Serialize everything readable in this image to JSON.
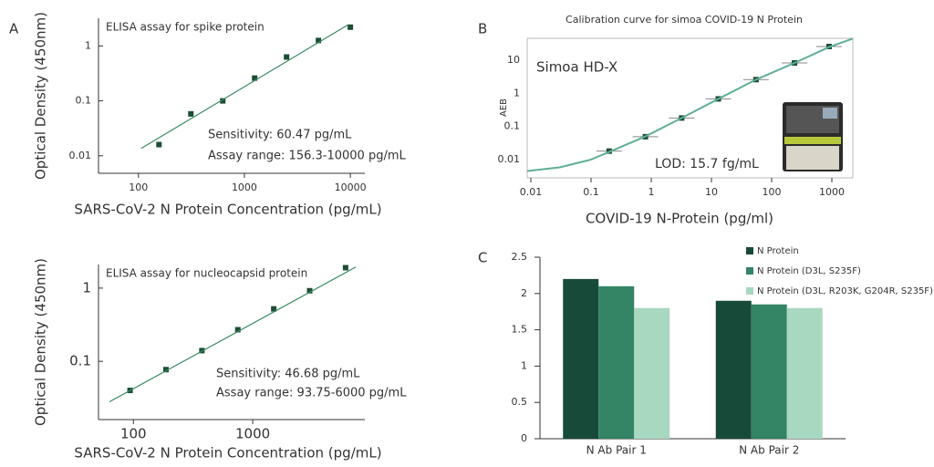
{
  "panel_labels": [
    "A",
    "B",
    "C"
  ],
  "chart_data": [
    {
      "type": "scatter",
      "title": "ELISA assay for spike protein",
      "annotations": [
        "Sensitivity: 60.47 pg/mL",
        "Assay range: 156.3-10000 pg/mL"
      ],
      "x_label": "SARS-CoV-2 N Protein Concentration (pg/mL)",
      "y_label": "Optical Density (450nm)",
      "log_x": true,
      "log_y": true,
      "xlim": [
        42,
        13700
      ],
      "ylim": [
        0.0048,
        3.2
      ],
      "xticks": [
        100,
        1000,
        10000
      ],
      "yticks": [
        0.01,
        0.1,
        1
      ],
      "series": [
        {
          "style": "markers",
          "color": "#1e4d33",
          "x": [
            156.3,
            312.5,
            625,
            1250,
            2500,
            5000,
            10000
          ],
          "values": [
            0.016,
            0.058,
            0.1,
            0.26,
            0.63,
            1.26,
            2.2
          ]
        },
        {
          "style": "line",
          "color": "#3a8a66",
          "x": [
            106,
            9400
          ],
          "values": [
            0.0136,
            2.4
          ]
        }
      ]
    },
    {
      "type": "scatter",
      "title": "ELISA assay for nucleocapsid protein",
      "annotations": [
        "Sensitivity: 46.68 pg/mL",
        "Assay range: 93.75-6000 pg/mL"
      ],
      "x_label": "SARS-CoV-2 N Protein Concentration (pg/mL)",
      "y_label": "Optical Density (450nm)",
      "log_x": true,
      "log_y": true,
      "xlim": [
        51,
        8700
      ],
      "ylim": [
        0.016,
        2.1
      ],
      "xticks": [
        100,
        1000
      ],
      "yticks": [
        0.1,
        1
      ],
      "series": [
        {
          "style": "markers",
          "color": "#1e4d33",
          "x": [
            93.75,
            187.5,
            375,
            750,
            1500,
            3000,
            6000
          ],
          "values": [
            0.04,
            0.077,
            0.14,
            0.27,
            0.52,
            0.92,
            1.9
          ]
        },
        {
          "style": "line",
          "color": "#3a8a66",
          "x": [
            63,
            7300
          ],
          "values": [
            0.028,
            1.94
          ]
        }
      ]
    },
    {
      "type": "scatter",
      "title": "Calibration curve for simoa COVID-19 N Protein",
      "annotations": [
        "Simoa HD-X",
        "LOD: 15.7 fg/mL"
      ],
      "x_label": "COVID-19 N-Protein (pg/ml)",
      "y_label": "AEB",
      "log_x": true,
      "log_y": true,
      "xlim": [
        0.0087,
        2230
      ],
      "ylim": [
        0.0028,
        46
      ],
      "xticks": [
        0.01,
        0.1,
        1,
        10,
        100,
        1000
      ],
      "yticks": [
        0.01,
        0.1,
        1,
        10
      ],
      "series": [
        {
          "style": "markers",
          "color": "#1e4d33",
          "x": [
            0.2,
            0.8,
            3.2,
            13,
            55,
            240,
            900
          ],
          "values": [
            0.018,
            0.049,
            0.18,
            0.68,
            2.6,
            8.3,
            26
          ]
        },
        {
          "style": "line",
          "color": "#5fae98",
          "x": [
            0.0087,
            0.03,
            0.1,
            0.2,
            0.8,
            3.2,
            13,
            55,
            240,
            900,
            2230
          ],
          "values": [
            0.0045,
            0.0058,
            0.01,
            0.017,
            0.05,
            0.18,
            0.68,
            2.6,
            8.3,
            25,
            45
          ]
        }
      ]
    },
    {
      "type": "bar",
      "categories": [
        "N Ab Pair 1",
        "N Ab Pair 2"
      ],
      "ylim": [
        0,
        2.5
      ],
      "yticks": [
        0,
        0.5,
        1,
        1.5,
        2,
        2.5
      ],
      "legend": "top-right",
      "series": [
        {
          "name": "N Protein",
          "color": "#174a38",
          "values": [
            2.2,
            1.9
          ]
        },
        {
          "name": "N Protein (D3L, S235F)",
          "color": "#338565",
          "values": [
            2.1,
            1.85
          ]
        },
        {
          "name": "N Protein (D3L, R203K, G204R, S235F)",
          "color": "#a8d8c0",
          "values": [
            1.8,
            1.8
          ]
        }
      ]
    }
  ]
}
